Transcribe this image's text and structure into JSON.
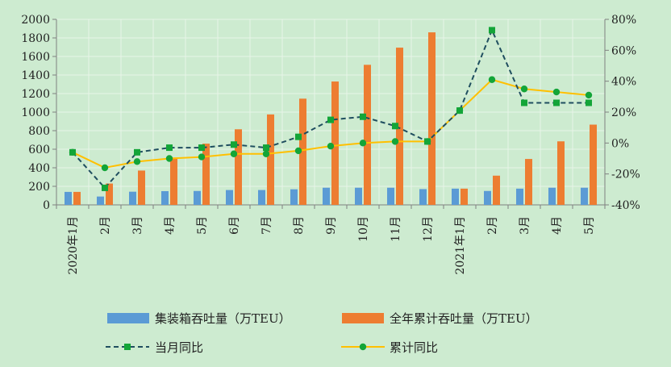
{
  "chart_data": {
    "type": "bar",
    "categories": [
      "2020年1月",
      "2月",
      "3月",
      "4月",
      "5月",
      "6月",
      "7月",
      "8月",
      "9月",
      "10月",
      "11月",
      "12月",
      "2021年1月",
      "2月",
      "3月",
      "4月",
      "5月"
    ],
    "series": [
      {
        "name": "集装箱吞吐量（万TEU）",
        "kind": "bar",
        "axis": "left",
        "values": [
          140,
          90,
          142,
          148,
          150,
          160,
          160,
          168,
          185,
          185,
          185,
          170,
          175,
          150,
          175,
          185,
          185
        ]
      },
      {
        "name": "全年累计吞吐量（万TEU）",
        "kind": "bar",
        "axis": "left",
        "values": [
          140,
          230,
          370,
          510,
          660,
          815,
          975,
          1145,
          1330,
          1510,
          1695,
          1860,
          175,
          315,
          495,
          685,
          865
        ]
      },
      {
        "name": "当月同比",
        "kind": "line-dashed",
        "axis": "right",
        "values": [
          -6,
          -29,
          -6,
          -3,
          -3,
          -1,
          -3,
          4,
          15,
          17,
          11,
          1,
          21,
          73,
          26,
          26,
          26
        ]
      },
      {
        "name": "累计同比",
        "kind": "line",
        "axis": "right",
        "values": [
          -6,
          -16,
          -12,
          -10,
          -9,
          -7,
          -7,
          -5,
          -2,
          0,
          1,
          1,
          21,
          41,
          35,
          33,
          31
        ]
      }
    ],
    "left_axis": {
      "min": 0,
      "max": 2000,
      "step": 200,
      "ticks": [
        "0",
        "200",
        "400",
        "600",
        "800",
        "1000",
        "1200",
        "1400",
        "1600",
        "1800",
        "2000"
      ]
    },
    "right_axis": {
      "min": -40,
      "max": 80,
      "step": 20,
      "ticks": [
        "-40%",
        "-20%",
        "0%",
        "20%",
        "40%",
        "60%",
        "80%"
      ]
    },
    "grid": true,
    "legend_position": "bottom",
    "colors": {
      "bar_monthly": "#5b9bd5",
      "bar_cumulative": "#ed7d31",
      "line_monthly": "#1f4e5f",
      "line_cumulative": "#ffc000",
      "marker": "#13a538",
      "grid": "#e8f4e8",
      "background": "#cdebd0"
    }
  }
}
